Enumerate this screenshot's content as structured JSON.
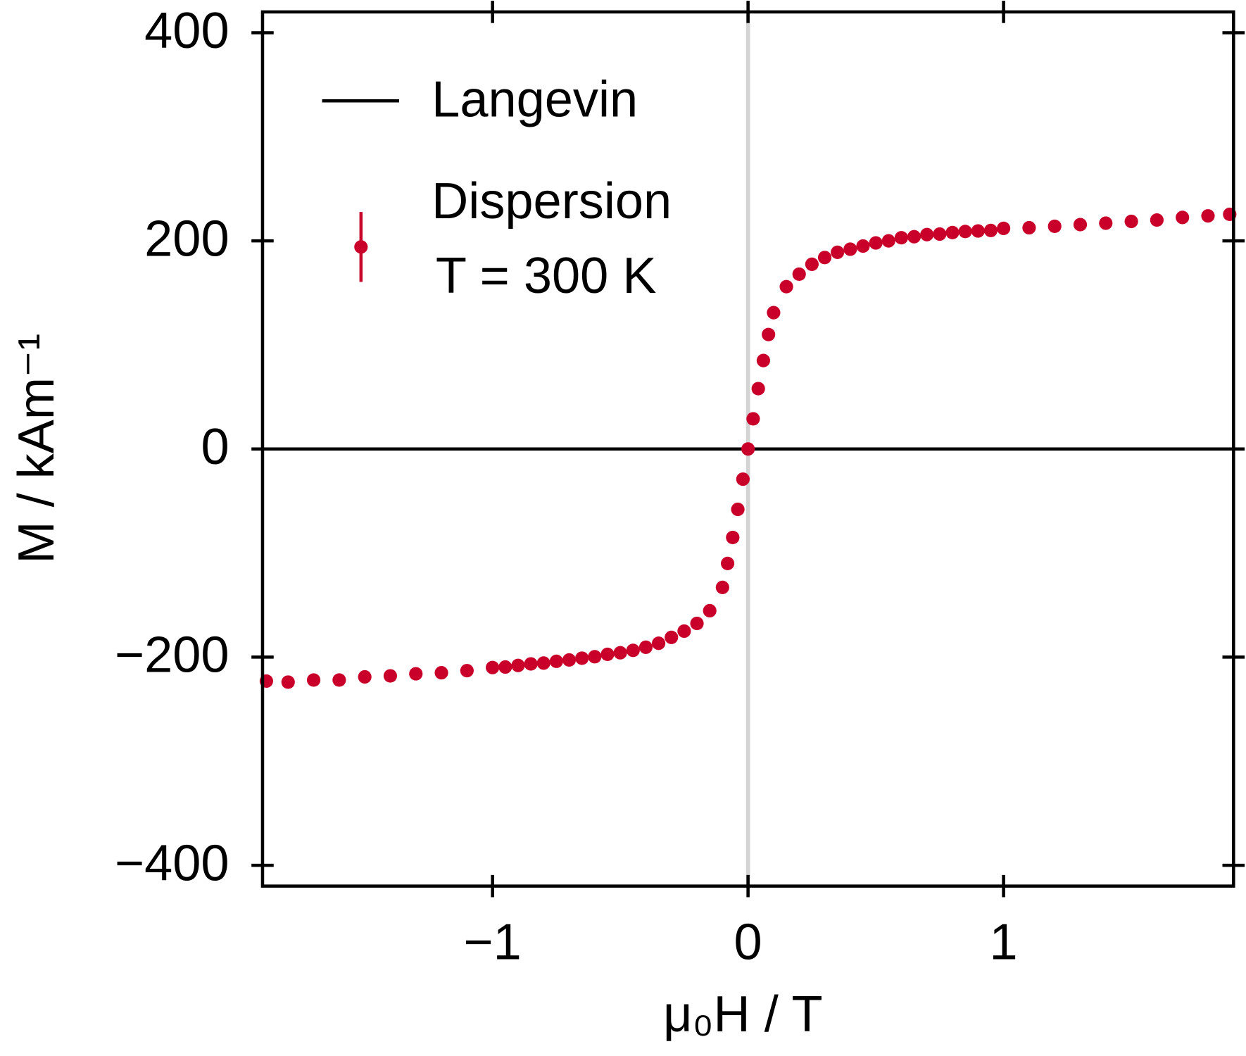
{
  "chart_data": {
    "type": "scatter",
    "xlabel": "μ₀H / T",
    "ylabel": "M / kAm⁻¹",
    "xlim": [
      -1.9,
      1.9
    ],
    "ylim": [
      -420,
      420
    ],
    "xticks": [
      {
        "value": -1,
        "label": "−1"
      },
      0,
      1
    ],
    "yticks": [
      {
        "value": -400,
        "label": "−400"
      },
      {
        "value": -200,
        "label": "−200"
      },
      0,
      200,
      400
    ],
    "vline": 0,
    "vline_color": "#d3d3d3",
    "legend_note": "T = 300 K",
    "series": [
      {
        "name": "Langevin",
        "kind": "line",
        "color": "#000000",
        "x": [
          -1.9,
          1.9
        ],
        "values": [
          0,
          0
        ]
      },
      {
        "name": "Dispersion",
        "kind": "points",
        "color": "#c9002a",
        "x": [
          -1.885,
          -1.8,
          -1.7,
          -1.6,
          -1.5,
          -1.4,
          -1.3,
          -1.2,
          -1.1,
          -1.0,
          -0.95,
          -0.9,
          -0.85,
          -0.8,
          -0.75,
          -0.7,
          -0.65,
          -0.6,
          -0.55,
          -0.5,
          -0.45,
          -0.4,
          -0.35,
          -0.3,
          -0.25,
          -0.2,
          -0.15,
          -0.1,
          -0.08,
          -0.06,
          -0.04,
          -0.02,
          0,
          0.02,
          0.04,
          0.06,
          0.08,
          0.1,
          0.15,
          0.2,
          0.25,
          0.3,
          0.35,
          0.4,
          0.45,
          0.5,
          0.55,
          0.6,
          0.65,
          0.7,
          0.75,
          0.8,
          0.85,
          0.9,
          0.95,
          1.0,
          1.1,
          1.2,
          1.3,
          1.4,
          1.5,
          1.6,
          1.7,
          1.8,
          1.885
        ],
        "values": [
          -223,
          -224,
          -222,
          -222,
          -219,
          -218,
          -216,
          -215,
          -213,
          -210,
          -209.5,
          -208,
          -206.5,
          -205.7,
          -204,
          -202.7,
          -201,
          -199.6,
          -197.3,
          -195.8,
          -193.5,
          -190.5,
          -186.7,
          -181,
          -175,
          -167.6,
          -155.4,
          -133,
          -110,
          -85,
          -58,
          -29,
          0,
          29,
          58,
          85,
          110,
          131,
          156,
          168,
          177.5,
          184,
          189,
          192,
          195,
          198,
          200,
          203,
          204,
          206,
          206.5,
          208,
          209,
          209.5,
          210,
          212,
          212.6,
          214,
          215.6,
          217,
          218.7,
          220,
          222.5,
          224,
          225.5
        ]
      }
    ]
  }
}
